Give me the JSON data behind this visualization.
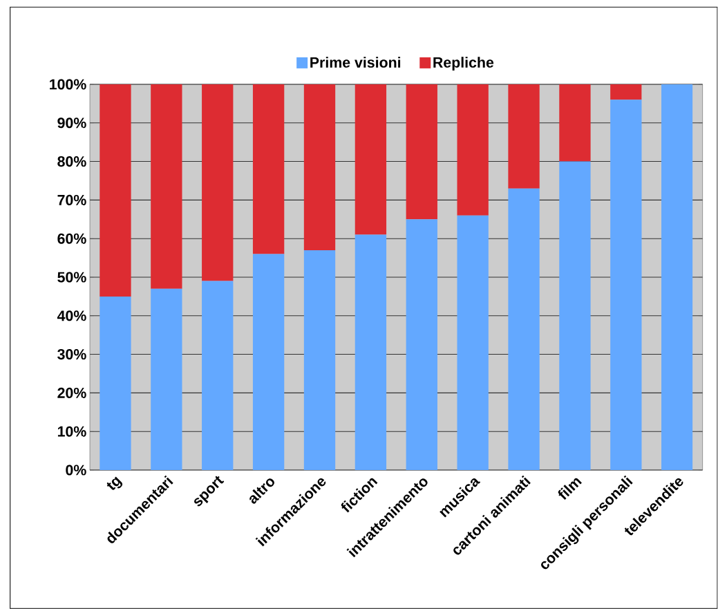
{
  "chart_data": {
    "type": "bar",
    "stacked": true,
    "categories": [
      "tg",
      "documentari",
      "sport",
      "altro",
      "informazione",
      "fiction",
      "intrattenimento",
      "musica",
      "cartoni animati",
      "film",
      "consigli personali",
      "televendite"
    ],
    "series": [
      {
        "name": "Prime visioni",
        "color": "#63a8ff",
        "values": [
          45,
          47,
          49,
          56,
          57,
          61,
          65,
          66,
          73,
          80,
          96,
          100
        ]
      },
      {
        "name": "Repliche",
        "color": "#dd2c32",
        "values": [
          55,
          53,
          51,
          44,
          43,
          39,
          35,
          34,
          27,
          20,
          4,
          0
        ]
      }
    ],
    "ylim": [
      0,
      100
    ],
    "yticks": [
      {
        "value": 0,
        "label": "0%"
      },
      {
        "value": 10,
        "label": "10%"
      },
      {
        "value": 20,
        "label": "20%"
      },
      {
        "value": 30,
        "label": "30%"
      },
      {
        "value": 40,
        "label": "40%"
      },
      {
        "value": 50,
        "label": "50%"
      },
      {
        "value": 60,
        "label": "60%"
      },
      {
        "value": 70,
        "label": "70%"
      },
      {
        "value": 80,
        "label": "80%"
      },
      {
        "value": 90,
        "label": "90%"
      },
      {
        "value": 100,
        "label": "100%"
      }
    ],
    "grid": "y",
    "legend": "top"
  }
}
